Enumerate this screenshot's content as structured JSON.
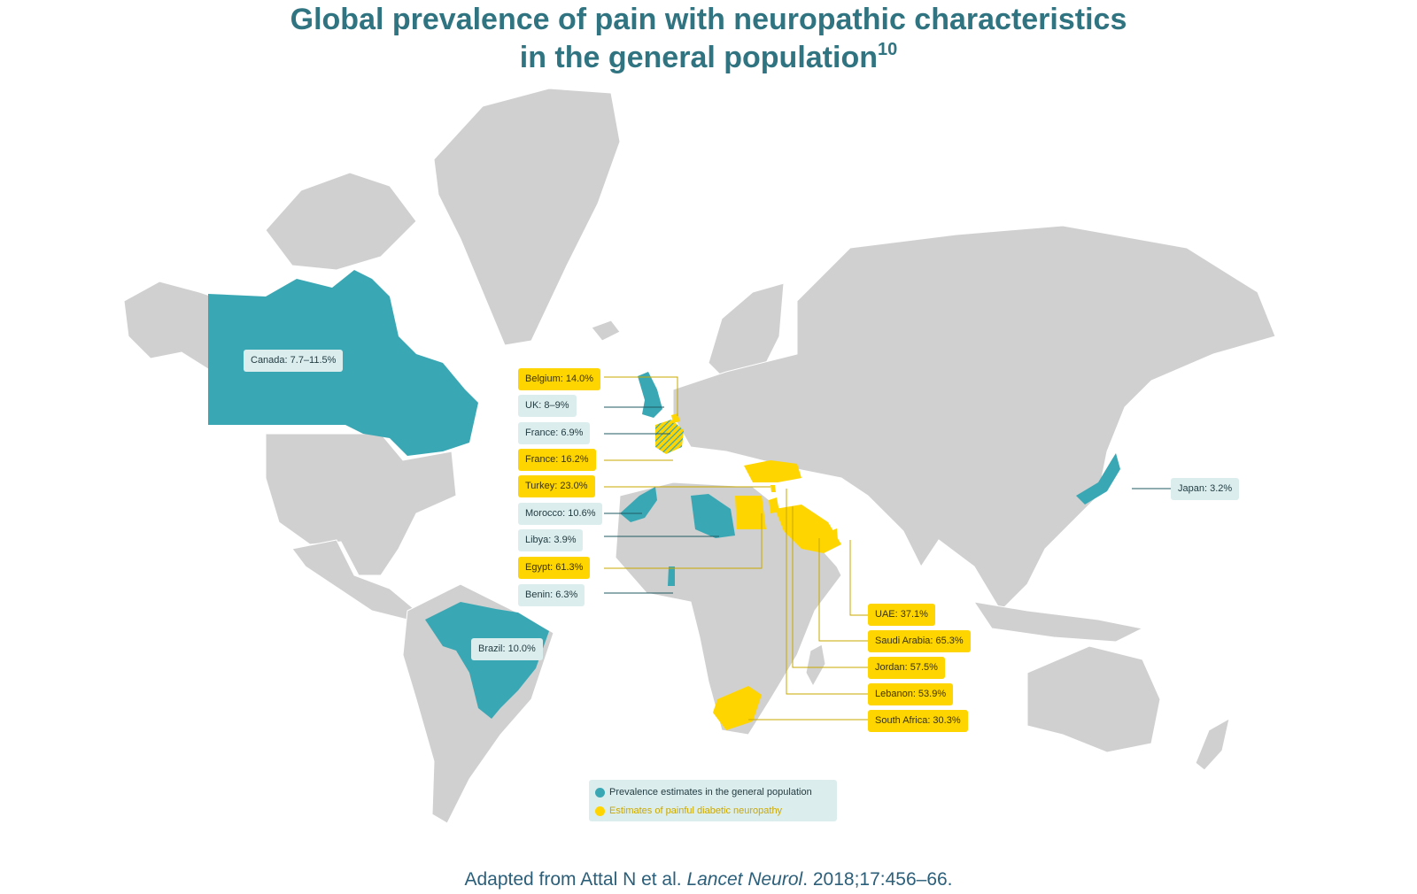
{
  "title": {
    "line1": "Global prevalence of pain with neuropathic characteristics",
    "line2": "in the general population",
    "ref": "10"
  },
  "colors": {
    "land": "#d0d0d0",
    "teal": "#3aa8b4",
    "yellow": "#ffd500",
    "title": "#2f7480"
  },
  "labels": [
    {
      "id": "canada",
      "text": "Canada: 7.7–11.5%",
      "category": "general"
    },
    {
      "id": "brazil",
      "text": "Brazil: 10.0%",
      "category": "general"
    },
    {
      "id": "japan",
      "text": "Japan: 3.2%",
      "category": "general"
    },
    {
      "id": "belgium",
      "text": "Belgium: 14.0%",
      "category": "diabetic"
    },
    {
      "id": "uk",
      "text": "UK: 8–9%",
      "category": "general"
    },
    {
      "id": "france-general",
      "text": "France: 6.9%",
      "category": "general"
    },
    {
      "id": "france-diabetic",
      "text": "France: 16.2%",
      "category": "diabetic"
    },
    {
      "id": "turkey",
      "text": "Turkey: 23.0%",
      "category": "diabetic"
    },
    {
      "id": "morocco",
      "text": "Morocco: 10.6%",
      "category": "general"
    },
    {
      "id": "libya",
      "text": "Libya: 3.9%",
      "category": "general"
    },
    {
      "id": "egypt",
      "text": "Egypt: 61.3%",
      "category": "diabetic"
    },
    {
      "id": "benin",
      "text": "Benin: 6.3%",
      "category": "general"
    },
    {
      "id": "uae",
      "text": "UAE: 37.1%",
      "category": "diabetic"
    },
    {
      "id": "saudi-arabia",
      "text": "Saudi Arabia: 65.3%",
      "category": "diabetic"
    },
    {
      "id": "jordan",
      "text": "Jordan: 57.5%",
      "category": "diabetic"
    },
    {
      "id": "lebanon",
      "text": "Lebanon: 53.9%",
      "category": "diabetic"
    },
    {
      "id": "south-africa",
      "text": "South Africa: 30.3%",
      "category": "diabetic"
    }
  ],
  "legend": {
    "general": "Prevalence estimates in the general population",
    "diabetic": "Estimates of painful diabetic neuropathy"
  },
  "footnote": {
    "prefix": "Adapted from Attal N et al. ",
    "journal": "Lancet Neurol",
    "suffix": ". 2018;17:456–66."
  }
}
